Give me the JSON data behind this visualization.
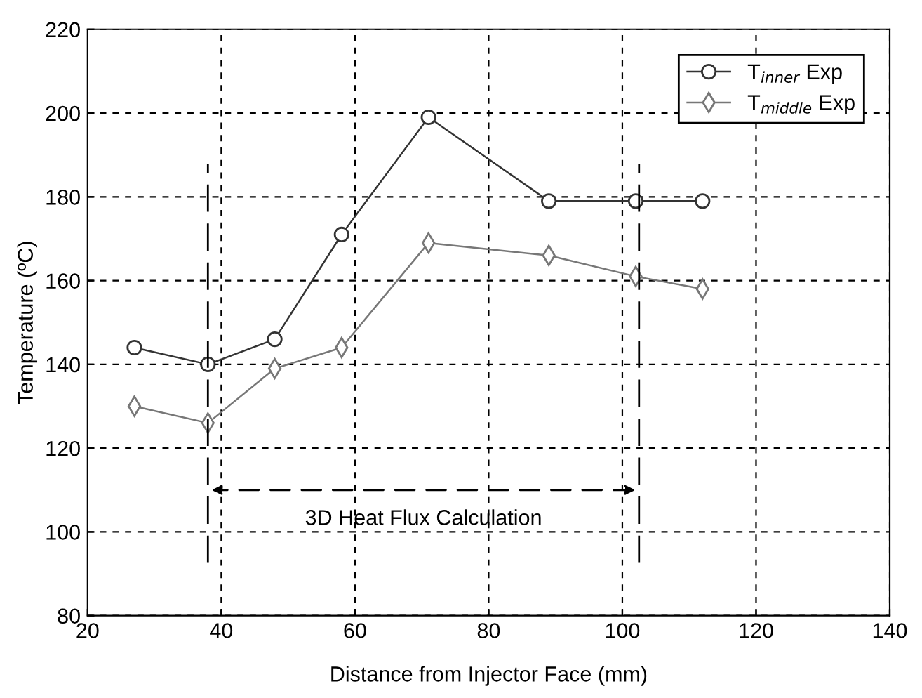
{
  "chart_data": {
    "type": "line",
    "xlabel": "Distance from Injector Face (mm)",
    "ylabel": "Temperature (ºC)",
    "xlim": [
      20,
      140
    ],
    "xticks": [
      20,
      40,
      60,
      80,
      100,
      120,
      140
    ],
    "ylim": [
      80,
      220
    ],
    "yticks": [
      80,
      100,
      120,
      140,
      160,
      180,
      200,
      220
    ],
    "grid": true,
    "legend": "top right",
    "series": [
      {
        "name": "T$_{inner}$ Exp",
        "color": "#333333",
        "marker": "circle",
        "x": [
          27,
          38,
          48,
          58,
          71,
          89,
          102,
          112
        ],
        "values": [
          144,
          140,
          146,
          171,
          199,
          179,
          179,
          179
        ]
      },
      {
        "name": "T$_{middle}$ Exp",
        "color": "#777777",
        "marker": "diamond",
        "x": [
          27,
          38,
          48,
          58,
          71,
          89,
          102,
          112
        ],
        "values": [
          130,
          126,
          139,
          144,
          169,
          166,
          161,
          158
        ]
      }
    ],
    "ref_lines": [
      {
        "axis": "x",
        "value": 38,
        "color": "#000000",
        "line_style": "dashed"
      },
      {
        "axis": "x",
        "value": 102.5,
        "color": "#000000",
        "line_style": "dashed"
      }
    ],
    "annotations": [
      "3D Heat Flux Calculation"
    ]
  }
}
